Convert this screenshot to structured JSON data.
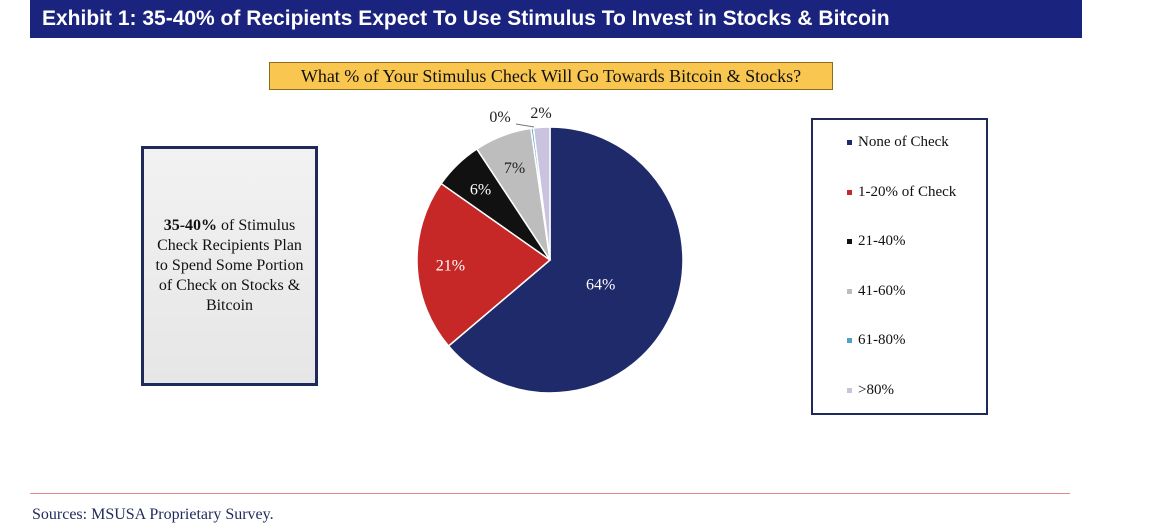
{
  "header": {
    "title": "Exhibit 1: 35-40% of Recipients Expect To Use Stimulus To Invest in Stocks & Bitcoin"
  },
  "callout": {
    "bold": "35-40%",
    "text": " of Stimulus Check Recipients Plan to Spend Some Portion of Check on Stocks & Bitcoin"
  },
  "chart_data": {
    "type": "pie",
    "title": "What % of Your Stimulus Check Will Go Towards Bitcoin & Stocks?",
    "slices": [
      {
        "label": "None of Check",
        "value": 64,
        "display": "64%",
        "color": "#1f2a6b",
        "label_color": "#ffffff"
      },
      {
        "label": "1-20% of Check",
        "value": 21,
        "display": "21%",
        "color": "#c62828",
        "label_color": "#ffffff"
      },
      {
        "label": "21-40%",
        "value": 6,
        "display": "6%",
        "color": "#111111",
        "label_color": "#ffffff"
      },
      {
        "label": "41-60%",
        "value": 7,
        "display": "7%",
        "color": "#bdbdbd",
        "label_color": "#222222"
      },
      {
        "label": "61-80%",
        "value": 0.3,
        "display": "0%",
        "color": "#4fa3c7",
        "label_color": "#222222"
      },
      {
        "label": ">80%",
        "value": 2,
        "display": "2%",
        "color": "#c9c3e0",
        "label_color": "#222222"
      }
    ],
    "legend_position": "right"
  },
  "footer": {
    "source": "Sources: MSUSA Proprietary Survey."
  }
}
